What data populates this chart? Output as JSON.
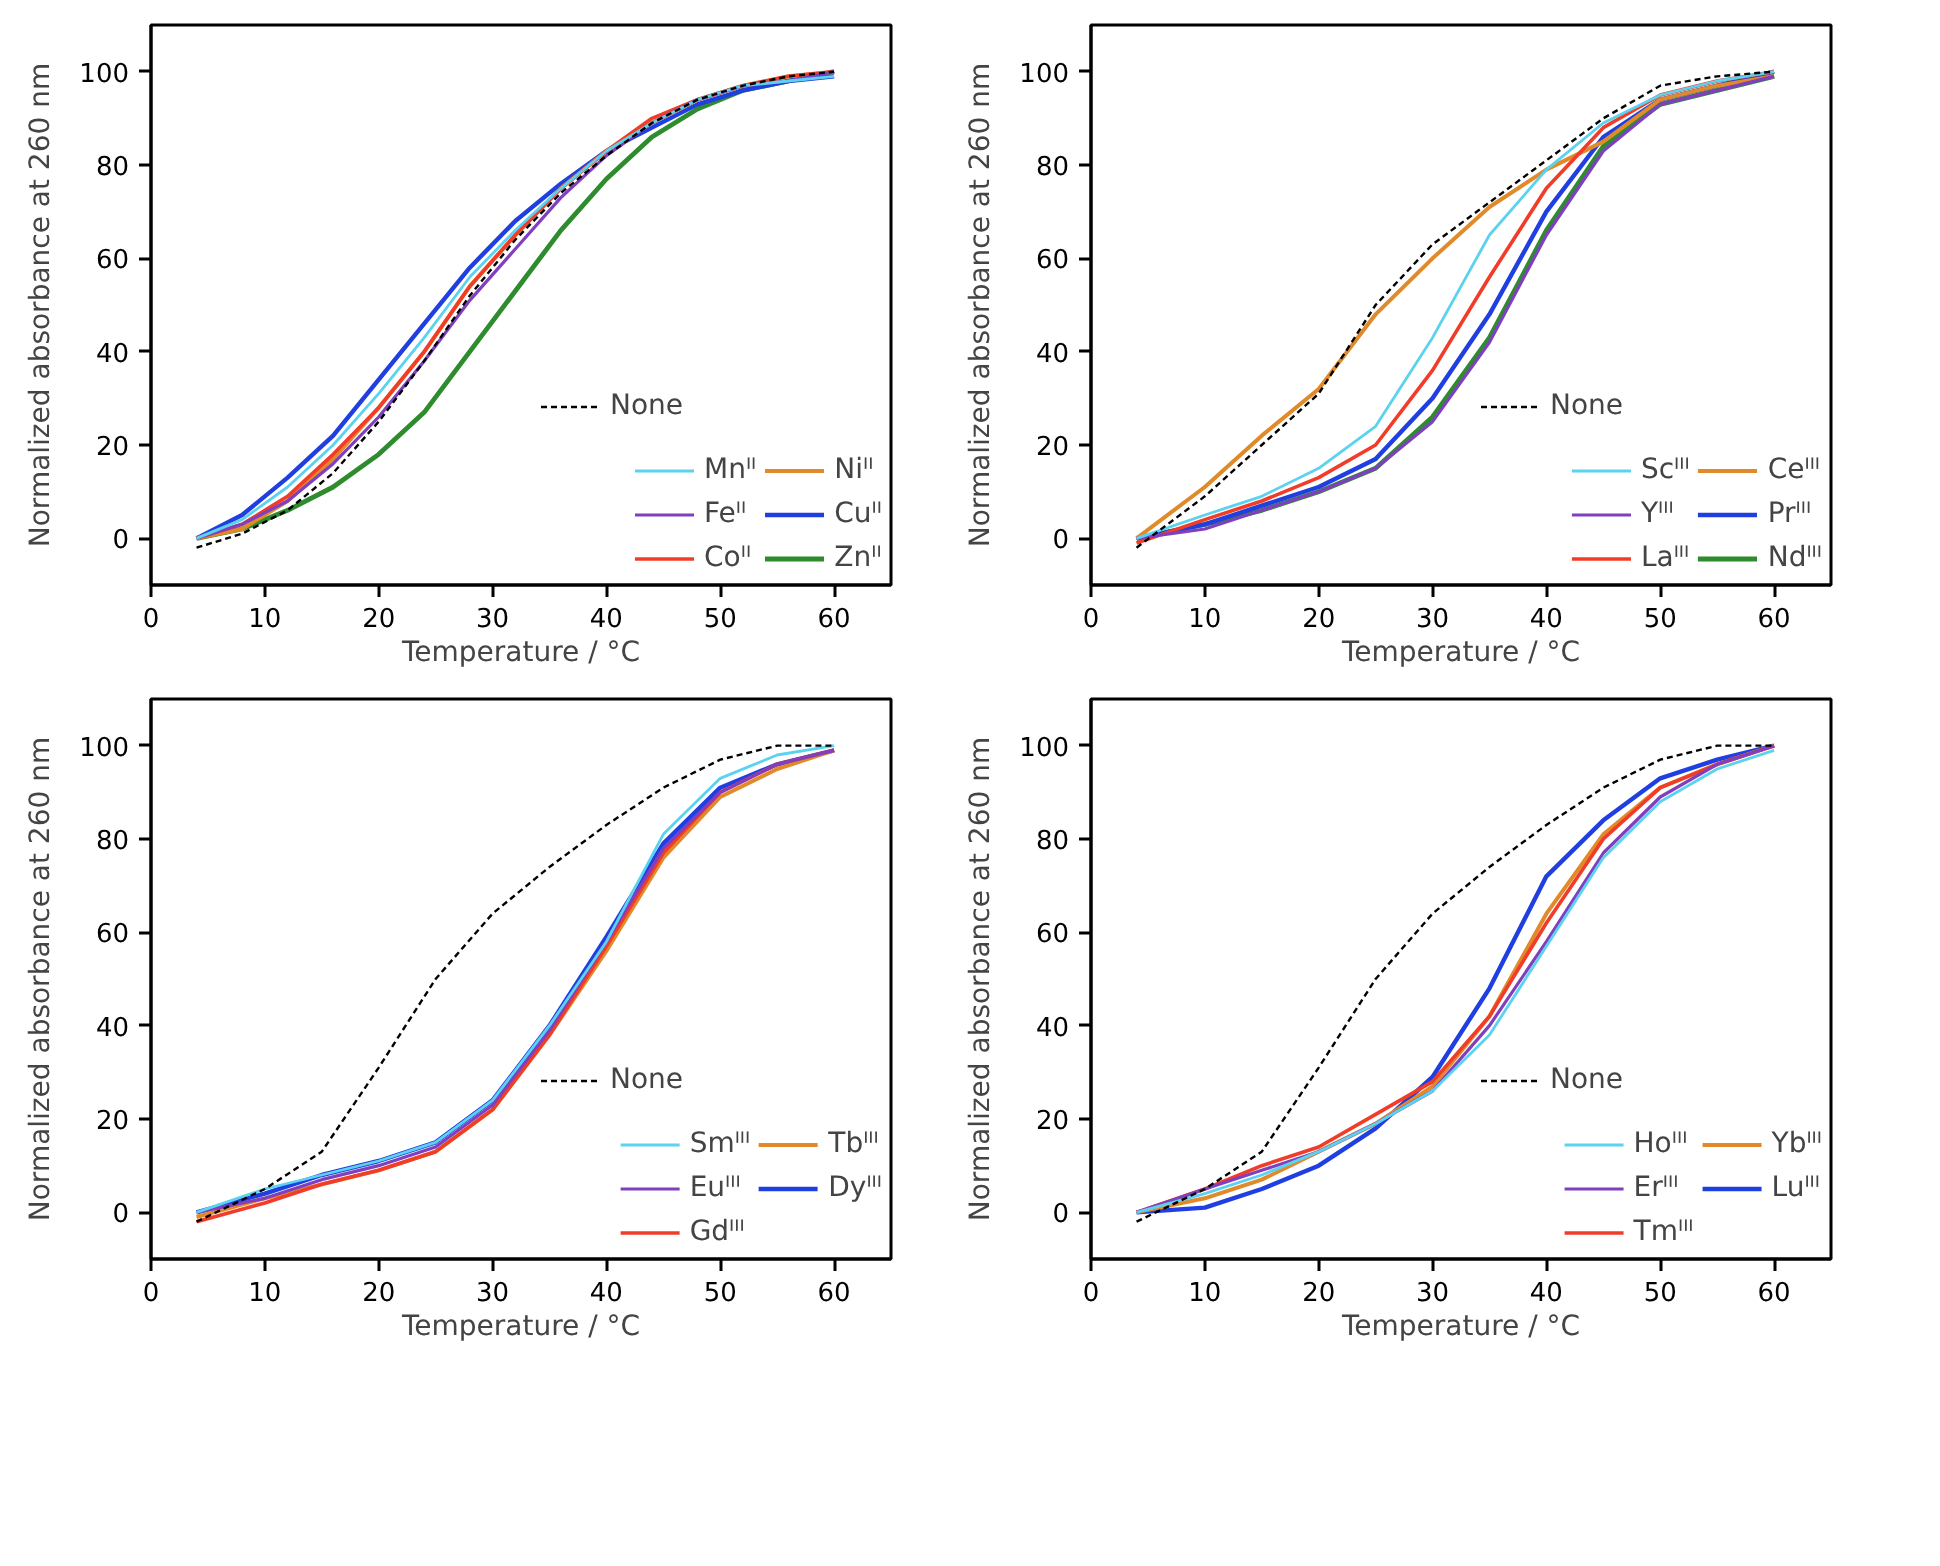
{
  "chart_data": [
    {
      "type": "line",
      "xlabel": "Temperature / °C",
      "ylabel": "Normalized absorbance at 260 nm",
      "xlim": [
        0,
        65
      ],
      "ylim": [
        -10,
        110
      ],
      "xticks": [
        0,
        10,
        20,
        30,
        40,
        50,
        60
      ],
      "yticks": [
        0,
        20,
        40,
        60,
        80,
        100
      ],
      "legend": "bottom right",
      "x": [
        4,
        8,
        12,
        16,
        20,
        24,
        28,
        32,
        36,
        40,
        44,
        48,
        52,
        56,
        60
      ],
      "series": [
        {
          "name": "None",
          "color": "#000000",
          "line_style": "dashed",
          "values": [
            -2,
            1,
            6,
            14,
            25,
            38,
            52,
            64,
            74,
            82,
            89,
            94,
            97,
            99,
            100
          ]
        },
        {
          "name": "Mnᴵᴵ",
          "color": "#5bd2f0",
          "values": [
            0,
            4,
            11,
            20,
            31,
            43,
            56,
            66,
            75,
            83,
            89,
            94,
            97,
            98,
            99
          ]
        },
        {
          "name": "Feᴵᴵ",
          "color": "#7f3fbf",
          "values": [
            0,
            3,
            8,
            16,
            26,
            38,
            51,
            62,
            73,
            82,
            89,
            94,
            97,
            98,
            100
          ]
        },
        {
          "name": "Coᴵᴵ",
          "color": "#f03c28",
          "values": [
            0,
            3,
            9,
            18,
            28,
            40,
            54,
            65,
            75,
            83,
            90,
            94,
            97,
            99,
            100
          ]
        },
        {
          "name": "Niᴵᴵ",
          "color": "#e08a2a",
          "values": [
            0,
            2,
            8,
            17,
            28,
            40,
            54,
            65,
            75,
            83,
            89,
            94,
            97,
            99,
            100
          ]
        },
        {
          "name": "Cuᴵᴵ",
          "color": "#1f3fe0",
          "values": [
            0,
            5,
            13,
            22,
            34,
            46,
            58,
            68,
            76,
            83,
            88,
            93,
            96,
            98,
            99
          ]
        },
        {
          "name": "Znᴵᴵ",
          "color": "#2e8b2e",
          "values": [
            0,
            2,
            6,
            11,
            18,
            27,
            40,
            53,
            66,
            77,
            86,
            92,
            96,
            98,
            100
          ]
        }
      ]
    },
    {
      "type": "line",
      "xlabel": "Temperature / °C",
      "ylabel": "Normalized absorbance at 260 nm",
      "xlim": [
        0,
        65
      ],
      "ylim": [
        -10,
        110
      ],
      "xticks": [
        0,
        10,
        20,
        30,
        40,
        50,
        60
      ],
      "yticks": [
        0,
        20,
        40,
        60,
        80,
        100
      ],
      "legend": "bottom right",
      "x": [
        4,
        10,
        15,
        20,
        25,
        30,
        35,
        40,
        45,
        50,
        55,
        60
      ],
      "series": [
        {
          "name": "None",
          "color": "#000000",
          "line_style": "dashed",
          "values": [
            -2,
            9,
            20,
            31,
            50,
            63,
            72,
            81,
            90,
            97,
            99,
            100
          ]
        },
        {
          "name": "Scᴵᴵᴵ",
          "color": "#5bd2f0",
          "values": [
            0,
            5,
            9,
            15,
            24,
            43,
            65,
            79,
            89,
            95,
            98,
            100
          ]
        },
        {
          "name": "Yᴵᴵᴵ",
          "color": "#7f3fbf",
          "values": [
            0,
            2,
            6,
            10,
            15,
            25,
            42,
            65,
            83,
            93,
            96,
            99
          ]
        },
        {
          "name": "Laᴵᴵᴵ",
          "color": "#f03c28",
          "values": [
            -1,
            4,
            8,
            13,
            20,
            36,
            56,
            75,
            88,
            95,
            98,
            100
          ]
        },
        {
          "name": "Ceᴵᴵᴵ",
          "color": "#e08a2a",
          "values": [
            0,
            11,
            22,
            32,
            48,
            60,
            71,
            79,
            85,
            94,
            97,
            99
          ]
        },
        {
          "name": "Prᴵᴵᴵ",
          "color": "#1f3fe0",
          "values": [
            0,
            3,
            7,
            11,
            17,
            30,
            48,
            70,
            86,
            94,
            97,
            100
          ]
        },
        {
          "name": "Ndᴵᴵᴵ",
          "color": "#2e8b2e",
          "values": [
            0,
            3,
            6,
            10,
            15,
            26,
            43,
            66,
            84,
            93,
            96,
            99
          ]
        }
      ]
    },
    {
      "type": "line",
      "xlabel": "Temperature / °C",
      "ylabel": "Normalized absorbance at 260 nm",
      "xlim": [
        0,
        65
      ],
      "ylim": [
        -10,
        110
      ],
      "xticks": [
        0,
        10,
        20,
        30,
        40,
        50,
        60
      ],
      "yticks": [
        0,
        20,
        40,
        60,
        80,
        100
      ],
      "legend": "bottom right",
      "x": [
        4,
        10,
        15,
        20,
        25,
        30,
        35,
        40,
        45,
        50,
        55,
        60
      ],
      "series": [
        {
          "name": "None",
          "color": "#000000",
          "line_style": "dashed",
          "values": [
            -2,
            5,
            13,
            31,
            50,
            64,
            74,
            83,
            91,
            97,
            100,
            100
          ]
        },
        {
          "name": "Smᴵᴵᴵ",
          "color": "#5bd2f0",
          "values": [
            0,
            5,
            8,
            11,
            15,
            24,
            40,
            58,
            81,
            93,
            98,
            100
          ]
        },
        {
          "name": "Euᴵᴵᴵ",
          "color": "#7f3fbf",
          "values": [
            0,
            3,
            7,
            10,
            14,
            23,
            39,
            58,
            78,
            90,
            96,
            99
          ]
        },
        {
          "name": "Gdᴵᴵᴵ",
          "color": "#f03c28",
          "values": [
            -2,
            2,
            6,
            9,
            13,
            22,
            38,
            57,
            77,
            90,
            96,
            99
          ]
        },
        {
          "name": "Tbᴵᴵᴵ",
          "color": "#e08a2a",
          "values": [
            -1,
            3,
            6,
            9,
            13,
            22,
            38,
            56,
            76,
            89,
            95,
            99
          ]
        },
        {
          "name": "Dyᴵᴵᴵ",
          "color": "#1f3fe0",
          "values": [
            0,
            4,
            8,
            11,
            15,
            24,
            40,
            59,
            79,
            91,
            96,
            99
          ]
        }
      ]
    },
    {
      "type": "line",
      "xlabel": "Temperature / °C",
      "ylabel": "Normalized absorbance at 260 nm",
      "xlim": [
        0,
        65
      ],
      "ylim": [
        -10,
        110
      ],
      "xticks": [
        0,
        10,
        20,
        30,
        40,
        50,
        60
      ],
      "yticks": [
        0,
        20,
        40,
        60,
        80,
        100
      ],
      "legend": "bottom right",
      "x": [
        4,
        10,
        15,
        20,
        25,
        30,
        35,
        40,
        45,
        50,
        55,
        60
      ],
      "series": [
        {
          "name": "None",
          "color": "#000000",
          "line_style": "dashed",
          "values": [
            -2,
            5,
            13,
            31,
            50,
            64,
            74,
            83,
            91,
            97,
            100,
            100
          ]
        },
        {
          "name": "Hoᴵᴵᴵ",
          "color": "#5bd2f0",
          "values": [
            0,
            4,
            8,
            13,
            19,
            26,
            38,
            57,
            76,
            88,
            95,
            99
          ]
        },
        {
          "name": "Erᴵᴵᴵ",
          "color": "#7f3fbf",
          "values": [
            0,
            5,
            9,
            13,
            19,
            26,
            40,
            58,
            77,
            89,
            96,
            100
          ]
        },
        {
          "name": "Tmᴵᴵᴵ",
          "color": "#f03c28",
          "values": [
            0,
            5,
            10,
            14,
            21,
            28,
            42,
            62,
            80,
            91,
            96,
            100
          ]
        },
        {
          "name": "Ybᴵᴵᴵ",
          "color": "#e08a2a",
          "values": [
            0,
            3,
            7,
            13,
            19,
            27,
            42,
            64,
            81,
            91,
            96,
            100
          ]
        },
        {
          "name": "Luᴵᴵᴵ",
          "color": "#1f3fe0",
          "values": [
            0,
            1,
            5,
            10,
            18,
            29,
            48,
            72,
            84,
            93,
            97,
            100
          ]
        }
      ]
    }
  ]
}
